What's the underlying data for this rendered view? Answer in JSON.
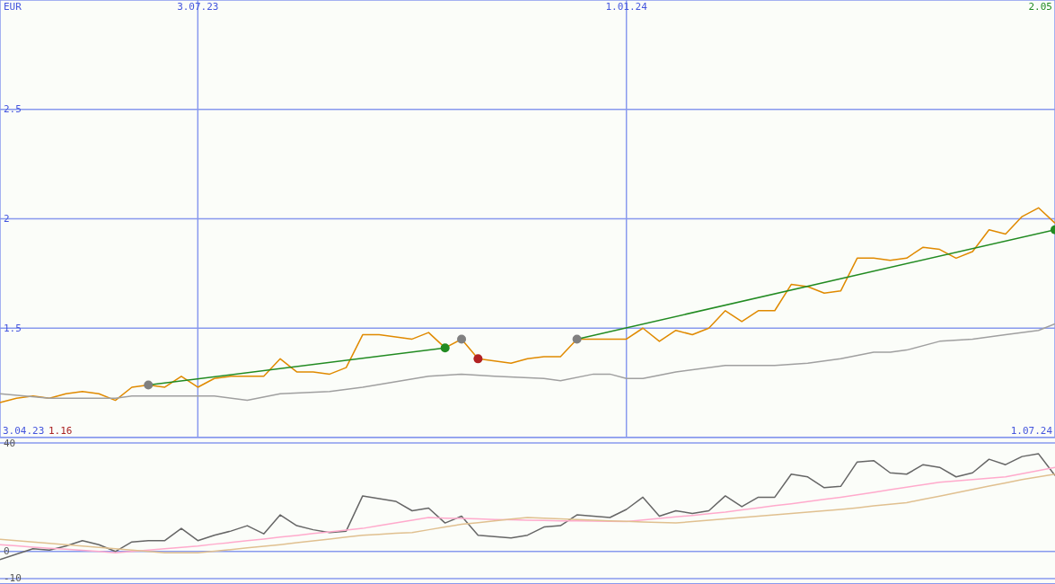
{
  "chart_data": [
    {
      "type": "line",
      "ylabel": "EUR",
      "x": [
        "2023-04-10",
        "2023-04-17",
        "2023-04-24",
        "2023-05-01",
        "2023-05-08",
        "2023-05-15",
        "2023-05-22",
        "2023-05-29",
        "2023-06-05",
        "2023-06-12",
        "2023-06-19",
        "2023-06-26",
        "2023-07-03",
        "2023-07-10",
        "2023-07-17",
        "2023-07-24",
        "2023-07-31",
        "2023-08-07",
        "2023-08-14",
        "2023-08-21",
        "2023-08-28",
        "2023-09-04",
        "2023-09-11",
        "2023-09-18",
        "2023-09-25",
        "2023-10-02",
        "2023-10-09",
        "2023-10-16",
        "2023-10-23",
        "2023-10-30",
        "2023-11-06",
        "2023-11-13",
        "2023-11-20",
        "2023-11-27",
        "2023-12-04",
        "2023-12-11",
        "2023-12-18",
        "2023-12-25",
        "2024-01-01",
        "2024-01-08",
        "2024-01-15",
        "2024-01-22",
        "2024-01-29",
        "2024-02-05",
        "2024-02-12",
        "2024-02-19",
        "2024-02-26",
        "2024-03-04",
        "2024-03-11",
        "2024-03-18",
        "2024-03-25",
        "2024-04-01",
        "2024-04-08",
        "2024-04-15",
        "2024-04-22",
        "2024-04-29",
        "2024-05-06",
        "2024-05-13",
        "2024-05-20",
        "2024-05-27",
        "2024-06-03",
        "2024-06-10",
        "2024-06-17",
        "2024-06-24",
        "2024-07-01"
      ],
      "series": [
        {
          "color": "#e08a00",
          "values": [
            1.16,
            1.18,
            1.19,
            1.18,
            1.2,
            1.21,
            1.2,
            1.17,
            1.23,
            1.24,
            1.23,
            1.28,
            1.23,
            1.27,
            1.28,
            1.28,
            1.28,
            1.36,
            1.3,
            1.3,
            1.29,
            1.32,
            1.47,
            1.47,
            1.46,
            1.45,
            1.48,
            1.41,
            1.45,
            1.36,
            1.35,
            1.34,
            1.36,
            1.37,
            1.37,
            1.45,
            1.45,
            1.45,
            1.45,
            1.5,
            1.44,
            1.49,
            1.47,
            1.5,
            1.58,
            1.53,
            1.58,
            1.58,
            1.7,
            1.69,
            1.66,
            1.67,
            1.82,
            1.82,
            1.81,
            1.82,
            1.87,
            1.86,
            1.82,
            1.85,
            1.95,
            1.93,
            2.01,
            2.05,
            1.98
          ]
        },
        {
          "color": "#a0a0a0",
          "x": [
            "2023-04-10",
            "2023-05-01",
            "2023-05-29",
            "2023-06-05",
            "2023-07-03",
            "2023-07-10",
            "2023-07-24",
            "2023-08-07",
            "2023-08-28",
            "2023-09-11",
            "2023-10-09",
            "2023-10-23",
            "2023-11-06",
            "2023-11-27",
            "2023-12-04",
            "2023-12-18",
            "2023-12-25",
            "2024-01-01",
            "2024-01-08",
            "2024-01-22",
            "2024-02-12",
            "2024-03-04",
            "2024-03-18",
            "2024-04-01",
            "2024-04-15",
            "2024-04-22",
            "2024-04-29",
            "2024-05-13",
            "2024-05-27",
            "2024-06-10",
            "2024-06-24",
            "2024-07-01"
          ],
          "values": [
            1.2,
            1.18,
            1.18,
            1.19,
            1.19,
            1.19,
            1.17,
            1.2,
            1.21,
            1.23,
            1.28,
            1.29,
            1.28,
            1.27,
            1.26,
            1.29,
            1.29,
            1.27,
            1.27,
            1.3,
            1.33,
            1.33,
            1.34,
            1.36,
            1.39,
            1.39,
            1.4,
            1.44,
            1.45,
            1.47,
            1.49,
            1.52
          ]
        },
        {
          "color": "#228b22",
          "x": [
            "2023-06-12",
            "2023-10-16"
          ],
          "values": [
            1.24,
            1.41
          ]
        },
        {
          "color": "#228b22",
          "x": [
            "2023-12-11",
            "2024-07-01"
          ],
          "values": [
            1.45,
            1.95
          ]
        },
        {
          "type": "scatter",
          "marker": "circle",
          "colors": [
            "#808080",
            "#228b22",
            "#808080",
            "#b22222",
            "#808080",
            "#228b22"
          ],
          "x": [
            "2023-06-12",
            "2023-10-16",
            "2023-10-23",
            "2023-10-30",
            "2023-12-11",
            "2024-07-01"
          ],
          "values": [
            1.24,
            1.41,
            1.45,
            1.36,
            1.45,
            1.95
          ]
        }
      ],
      "xlim": [
        "2023-04-10",
        "2024-07-01"
      ],
      "xticks": [
        {
          "value": "2023-07-03",
          "label": "3.07.23"
        },
        {
          "value": "2024-01-01",
          "label": "1.01.24"
        }
      ],
      "ylim": [
        1,
        3
      ],
      "yticks": [
        1.5,
        2,
        2.5
      ],
      "grid": true,
      "marker": "none",
      "annotations": [
        "3.04.23",
        "1.16",
        "1.07.24",
        "2.05"
      ]
    },
    {
      "type": "line",
      "categories": [
        null,
        null,
        null,
        null,
        null,
        null,
        null,
        null,
        null,
        null,
        null,
        null,
        null,
        null,
        null,
        null,
        null,
        null,
        null,
        null,
        null,
        null,
        null,
        null,
        null,
        null,
        null,
        null,
        null,
        null,
        null,
        null,
        null,
        null,
        null,
        null,
        null,
        null,
        null,
        null,
        null,
        null,
        null,
        null,
        null,
        null,
        null,
        null,
        null,
        null,
        null,
        null,
        null,
        null,
        null,
        null,
        null,
        null,
        null,
        null,
        null,
        null,
        null,
        null,
        null
      ],
      "series": [
        {
          "color": "#666666",
          "values": [
            -3,
            -1,
            1,
            0.5,
            2,
            4,
            2.5,
            0,
            3.5,
            4,
            4,
            8.5,
            4,
            6,
            7.5,
            9.5,
            6.5,
            13.5,
            9.5,
            8,
            7,
            7.5,
            20.5,
            19.5,
            18.5,
            15,
            16,
            10.5,
            13,
            6,
            5.5,
            5,
            6,
            9,
            9.5,
            13.5,
            13,
            12.5,
            15.5,
            20,
            13,
            15,
            14,
            15,
            20.5,
            16.5,
            20,
            20,
            28.5,
            27.5,
            23.5,
            24,
            33,
            33.5,
            29,
            28.5,
            32,
            31,
            27.5,
            29,
            34,
            32,
            35,
            36,
            28
          ]
        },
        {
          "color": "#ffaacc",
          "values": [
            2.5,
            2.1,
            1.6,
            1.2,
            0.8,
            0.4,
            0,
            -0.5,
            0,
            0.5,
            1,
            1.5,
            2,
            2.7,
            3.3,
            4,
            4.6,
            5.3,
            5.9,
            6.6,
            7.2,
            7.9,
            8.5,
            9.5,
            10.5,
            11.5,
            12.5,
            12.3,
            12.2,
            12,
            11.8,
            11.7,
            11.5,
            11.4,
            11.3,
            11.3,
            11.2,
            11.1,
            11,
            11.6,
            12.2,
            12.8,
            13.3,
            13.9,
            14.5,
            15.3,
            16.1,
            16.9,
            17.6,
            18.4,
            19.2,
            20,
            20.9,
            21.8,
            22.8,
            23.7,
            24.6,
            25.5,
            26,
            26.5,
            27,
            27.5,
            28.7,
            29.8,
            31
          ]
        },
        {
          "color": "#e0c090",
          "values": [
            4.5,
            4,
            3.5,
            3,
            2.5,
            2,
            1.5,
            1,
            0.5,
            0,
            -0.5,
            -0.5,
            -0.5,
            0.1,
            0.7,
            1.3,
            1.9,
            2.5,
            3.2,
            3.9,
            4.6,
            5.3,
            6,
            6.3,
            6.7,
            7,
            8,
            9,
            10,
            10.6,
            11.3,
            11.9,
            12.5,
            12.3,
            12,
            11.8,
            11.5,
            11.3,
            11.1,
            10.9,
            10.7,
            10.5,
            11,
            11.5,
            12,
            12.5,
            13,
            13.5,
            14,
            14.5,
            15,
            15.5,
            16.1,
            16.8,
            17.4,
            18,
            19.2,
            20.4,
            21.6,
            22.9,
            24.1,
            25.3,
            26.5,
            27.5,
            28.5
          ]
        }
      ],
      "ylim": [
        -12,
        42
      ],
      "yticks": [
        -10,
        0,
        40
      ],
      "grid": "y",
      "marker": "none"
    }
  ]
}
